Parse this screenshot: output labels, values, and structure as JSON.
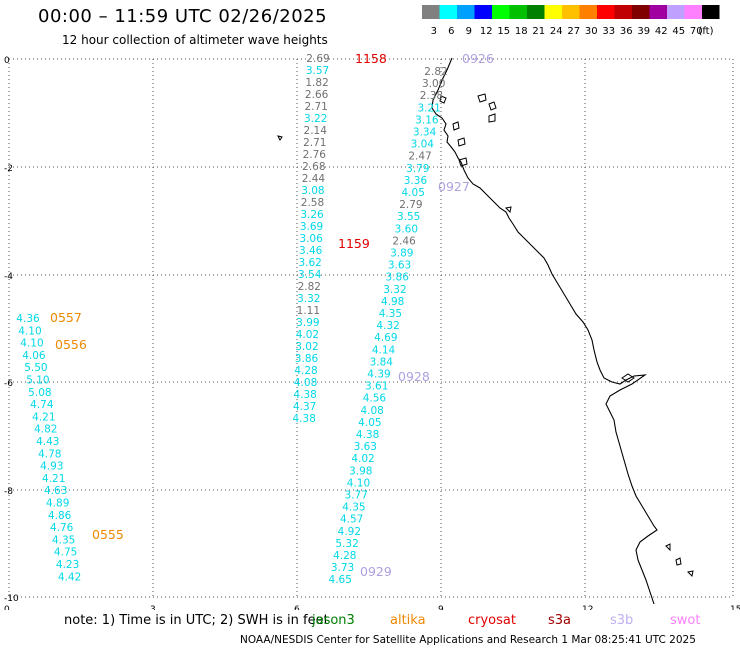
{
  "header": {
    "title": "00:00 – 11:59 UTC 02/26/2025",
    "subtitle": "12 hour collection of altimeter wave heights"
  },
  "legend": {
    "unit": "(ft)",
    "items": [
      {
        "label": "3",
        "color": "#808080"
      },
      {
        "label": "6",
        "color": "#00ffff"
      },
      {
        "label": "9",
        "color": "#00a0ff"
      },
      {
        "label": "12",
        "color": "#0000ff"
      },
      {
        "label": "15",
        "color": "#00ff00"
      },
      {
        "label": "18",
        "color": "#00c000"
      },
      {
        "label": "21",
        "color": "#008000"
      },
      {
        "label": "24",
        "color": "#ffff00"
      },
      {
        "label": "27",
        "color": "#ffc000"
      },
      {
        "label": "30",
        "color": "#ff8000"
      },
      {
        "label": "33",
        "color": "#ff0000"
      },
      {
        "label": "36",
        "color": "#c00000"
      },
      {
        "label": "39",
        "color": "#800000"
      },
      {
        "label": "42",
        "color": "#a000a0"
      },
      {
        "label": "45",
        "color": "#c0a0ff"
      },
      {
        "label": "70",
        "color": "#ff80ff"
      },
      {
        "label": "",
        "color": "#000000"
      }
    ]
  },
  "axes": {
    "x_ticks": [
      "0",
      "3",
      "6",
      "9",
      "12",
      "15"
    ],
    "y_ticks": [
      "0",
      "-2",
      "-4",
      "-6",
      "-8",
      "-10"
    ]
  },
  "colors": {
    "gray": "#707070",
    "cyan": "#00d8e8",
    "orange": "#f08800",
    "red": "#e00000",
    "lavender": "#b0a0e0"
  },
  "tracks": [
    {
      "name": "track-center",
      "points": [
        {
          "v": "2.69",
          "c": "gray"
        },
        {
          "v": "3.57",
          "c": "cyan"
        },
        {
          "v": "1.82",
          "c": "gray"
        },
        {
          "v": "2.66",
          "c": "gray"
        },
        {
          "v": "2.71",
          "c": "gray"
        },
        {
          "v": "3.22",
          "c": "cyan"
        },
        {
          "v": "2.14",
          "c": "gray"
        },
        {
          "v": "2.71",
          "c": "gray"
        },
        {
          "v": "2.76",
          "c": "gray"
        },
        {
          "v": "2.68",
          "c": "gray"
        },
        {
          "v": "2.44",
          "c": "gray"
        },
        {
          "v": "3.08",
          "c": "cyan"
        },
        {
          "v": "2.58",
          "c": "gray"
        },
        {
          "v": "3.26",
          "c": "cyan"
        },
        {
          "v": "3.69",
          "c": "cyan"
        },
        {
          "v": "3.06",
          "c": "cyan"
        },
        {
          "v": "3.46",
          "c": "cyan"
        },
        {
          "v": "3.62",
          "c": "cyan"
        },
        {
          "v": "3.54",
          "c": "cyan"
        },
        {
          "v": "2.82",
          "c": "gray"
        },
        {
          "v": "3.32",
          "c": "cyan"
        },
        {
          "v": "1.11",
          "c": "gray"
        },
        {
          "v": "3.99",
          "c": "cyan"
        },
        {
          "v": "4.02",
          "c": "cyan"
        },
        {
          "v": "3.02",
          "c": "cyan"
        },
        {
          "v": "3.86",
          "c": "cyan"
        },
        {
          "v": "4.28",
          "c": "cyan"
        },
        {
          "v": "4.08",
          "c": "cyan"
        },
        {
          "v": "4.38",
          "c": "cyan"
        },
        {
          "v": "4.37",
          "c": "cyan"
        },
        {
          "v": "4.38",
          "c": "cyan"
        }
      ]
    },
    {
      "name": "track-right",
      "points": [
        {
          "v": "2.82",
          "c": "gray"
        },
        {
          "v": "3.00",
          "c": "gray"
        },
        {
          "v": "2.38",
          "c": "gray"
        },
        {
          "v": "3.21",
          "c": "cyan"
        },
        {
          "v": "3.16",
          "c": "cyan"
        },
        {
          "v": "3.34",
          "c": "cyan"
        },
        {
          "v": "3.04",
          "c": "cyan"
        },
        {
          "v": "2.47",
          "c": "gray"
        },
        {
          "v": "3.79",
          "c": "cyan"
        },
        {
          "v": "3.36",
          "c": "cyan"
        },
        {
          "v": "4.05",
          "c": "cyan"
        },
        {
          "v": "2.79",
          "c": "gray"
        },
        {
          "v": "3.55",
          "c": "cyan"
        },
        {
          "v": "3.60",
          "c": "cyan"
        },
        {
          "v": "2.46",
          "c": "gray"
        },
        {
          "v": "3.89",
          "c": "cyan"
        },
        {
          "v": "3.63",
          "c": "cyan"
        },
        {
          "v": "3.86",
          "c": "cyan"
        },
        {
          "v": "3.32",
          "c": "cyan"
        },
        {
          "v": "4.98",
          "c": "cyan"
        },
        {
          "v": "4.35",
          "c": "cyan"
        },
        {
          "v": "4.32",
          "c": "cyan"
        },
        {
          "v": "4.69",
          "c": "cyan"
        },
        {
          "v": "4.14",
          "c": "cyan"
        },
        {
          "v": "3.84",
          "c": "cyan"
        },
        {
          "v": "4.39",
          "c": "cyan"
        },
        {
          "v": "3.61",
          "c": "cyan"
        },
        {
          "v": "4.56",
          "c": "cyan"
        },
        {
          "v": "4.08",
          "c": "cyan"
        },
        {
          "v": "4.05",
          "c": "cyan"
        },
        {
          "v": "4.38",
          "c": "cyan"
        },
        {
          "v": "3.63",
          "c": "cyan"
        },
        {
          "v": "4.02",
          "c": "cyan"
        },
        {
          "v": "3.98",
          "c": "cyan"
        },
        {
          "v": "4.10",
          "c": "cyan"
        },
        {
          "v": "3.77",
          "c": "cyan"
        },
        {
          "v": "4.35",
          "c": "cyan"
        },
        {
          "v": "4.57",
          "c": "cyan"
        },
        {
          "v": "4.92",
          "c": "cyan"
        },
        {
          "v": "5.32",
          "c": "cyan"
        },
        {
          "v": "4.28",
          "c": "cyan"
        },
        {
          "v": "3.73",
          "c": "cyan"
        },
        {
          "v": "4.65",
          "c": "cyan"
        }
      ]
    },
    {
      "name": "track-left",
      "points": [
        {
          "v": "4.36",
          "c": "cyan"
        },
        {
          "v": "4.10",
          "c": "cyan"
        },
        {
          "v": "4.10",
          "c": "cyan"
        },
        {
          "v": "4.06",
          "c": "cyan"
        },
        {
          "v": "5.50",
          "c": "cyan"
        },
        {
          "v": "5.10",
          "c": "cyan"
        },
        {
          "v": "5.08",
          "c": "cyan"
        },
        {
          "v": "4.74",
          "c": "cyan"
        },
        {
          "v": "4.21",
          "c": "cyan"
        },
        {
          "v": "4.82",
          "c": "cyan"
        },
        {
          "v": "4.43",
          "c": "cyan"
        },
        {
          "v": "4.78",
          "c": "cyan"
        },
        {
          "v": "4.93",
          "c": "cyan"
        },
        {
          "v": "4.21",
          "c": "cyan"
        },
        {
          "v": "4.63",
          "c": "cyan"
        },
        {
          "v": "4.89",
          "c": "cyan"
        },
        {
          "v": "4.86",
          "c": "cyan"
        },
        {
          "v": "4.76",
          "c": "cyan"
        },
        {
          "v": "4.35",
          "c": "cyan"
        },
        {
          "v": "4.75",
          "c": "cyan"
        },
        {
          "v": "4.23",
          "c": "cyan"
        },
        {
          "v": "4.42",
          "c": "cyan"
        }
      ]
    }
  ],
  "time_labels": [
    {
      "text": "1158",
      "c": "red"
    },
    {
      "text": "0926",
      "c": "lavender"
    },
    {
      "text": "0927",
      "c": "lavender"
    },
    {
      "text": "1159",
      "c": "red"
    },
    {
      "text": "0928",
      "c": "lavender"
    },
    {
      "text": "0929",
      "c": "lavender"
    },
    {
      "text": "0557",
      "c": "orange"
    },
    {
      "text": "0556",
      "c": "orange"
    },
    {
      "text": "0555",
      "c": "orange"
    }
  ],
  "footer": {
    "note": "note:  1) Time is in UTC; 2) SWH is in feet",
    "satellites": [
      {
        "name": "jason3",
        "color": "#008000"
      },
      {
        "name": "altika",
        "color": "#f08800"
      },
      {
        "name": "cryosat",
        "color": "#e00000"
      },
      {
        "name": "s3a",
        "color": "#a00000"
      },
      {
        "name": "s3b",
        "color": "#c0b0f0"
      },
      {
        "name": "swot",
        "color": "#ff80ff"
      }
    ],
    "credit": "NOAA/NESDIS Center for Satellite Applications and Research     1 Mar 08:25:41 UTC 2025"
  }
}
